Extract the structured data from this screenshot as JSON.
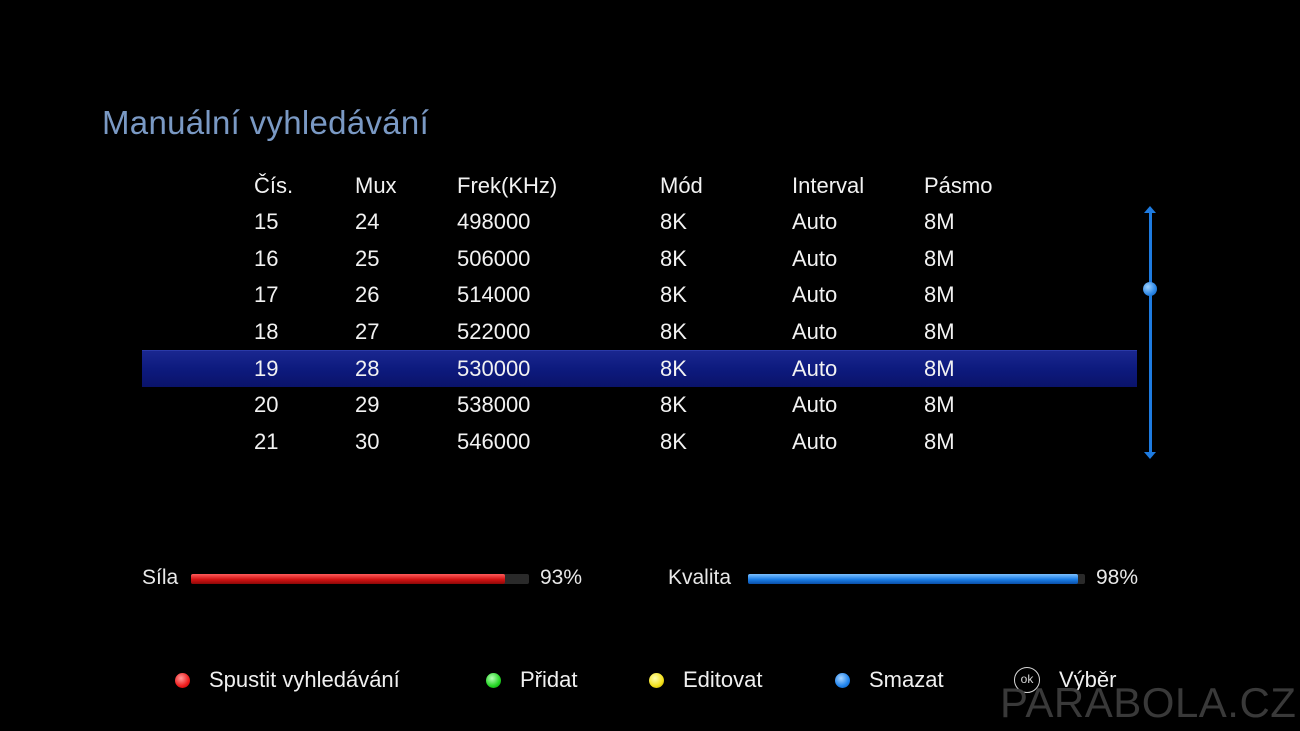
{
  "title": "Manuální vyhledávání",
  "table": {
    "headers": [
      "Čís.",
      "Mux",
      "Frek(KHz)",
      "Mód",
      "Interval",
      "Pásmo"
    ],
    "rows": [
      [
        "15",
        "24",
        "498000",
        "8K",
        "Auto",
        "8M"
      ],
      [
        "16",
        "25",
        "506000",
        "8K",
        "Auto",
        "8M"
      ],
      [
        "17",
        "26",
        "514000",
        "8K",
        "Auto",
        "8M"
      ],
      [
        "18",
        "27",
        "522000",
        "8K",
        "Auto",
        "8M"
      ],
      [
        "19",
        "28",
        "530000",
        "8K",
        "Auto",
        "8M"
      ],
      [
        "20",
        "29",
        "538000",
        "8K",
        "Auto",
        "8M"
      ],
      [
        "21",
        "30",
        "546000",
        "8K",
        "Auto",
        "8M"
      ]
    ],
    "selected_row": 4
  },
  "signal": {
    "strength": {
      "label": "Síla",
      "value_text": "93%",
      "fraction": 0.93
    },
    "quality": {
      "label": "Kvalita",
      "value_text": "98%",
      "fraction": 0.98
    }
  },
  "legend": {
    "start_scan": "Spustit vyhledávání",
    "add": "Přidat",
    "edit": "Editovat",
    "delete": "Smazat",
    "ok_icon_text": "ok",
    "select": "Výběr"
  },
  "watermark": "PARABOLA.CZ",
  "colors": {
    "title": "#7a99c4",
    "selected_row": "#0d1a7e",
    "strength_bar": "#d21313",
    "quality_bar": "#1a7de6",
    "scrollbar": "#1e7be0"
  }
}
